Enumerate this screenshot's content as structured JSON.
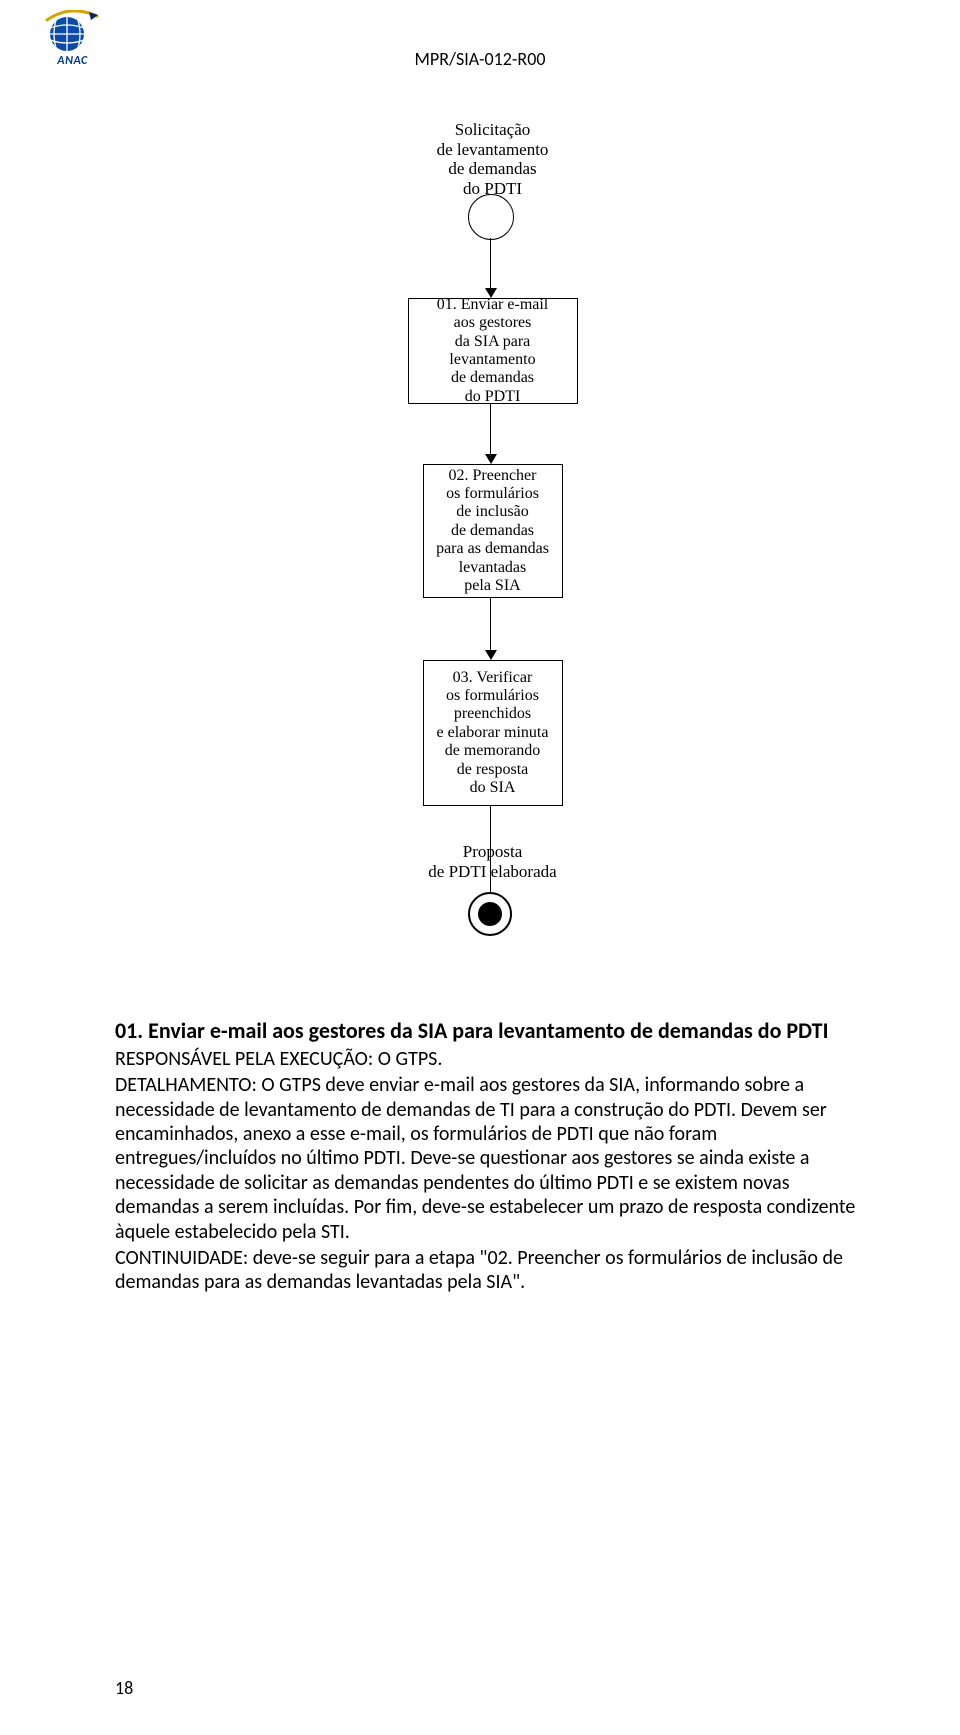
{
  "doc": {
    "header_code": "MPR/SIA-012-R00",
    "logo_text": "ANAC",
    "logo_colors": {
      "blue": "#003b8e",
      "gold": "#d6a400"
    },
    "page_number": "18"
  },
  "flowchart": {
    "type": "flowchart",
    "font_family": "Times New Roman",
    "node_fontsize": 16,
    "label_fontsize": 17,
    "border_color": "#000000",
    "background_color": "#ffffff",
    "line_width": 1.5,
    "start_label": "Solicitação\nde levantamento\nde demandas\ndo PDTI",
    "nodes": [
      {
        "id": "n1",
        "text": "01. Enviar e-mail\naos gestores\nda SIA para levantamento\nde demandas\ndo PDTI"
      },
      {
        "id": "n2",
        "text": "02. Preencher\nos formulários\nde inclusão\nde demandas\npara as demandas\nlevantadas\npela SIA"
      },
      {
        "id": "n3",
        "text": "03. Verificar\nos formulários\npreenchidos\ne elaborar minuta\nde memorando\nde resposta\ndo SIA"
      }
    ],
    "end_label": "Proposta\nde PDTI elaborada",
    "edges": [
      {
        "from": "start",
        "to": "n1"
      },
      {
        "from": "n1",
        "to": "n2"
      },
      {
        "from": "n2",
        "to": "n3"
      },
      {
        "from": "n3",
        "to": "end"
      }
    ]
  },
  "section": {
    "heading": "01. Enviar e-mail aos gestores da SIA para levantamento de demandas do PDTI",
    "responsavel": "RESPONSÁVEL PELA EXECUÇÃO: O GTPS.",
    "detalhamento": "DETALHAMENTO: O GTPS deve enviar e-mail aos gestores da SIA, informando sobre a necessidade de levantamento de demandas de TI para a construção do PDTI. Devem ser encaminhados, anexo a esse e-mail, os formulários de PDTI que não foram entregues/incluídos no último PDTI. Deve-se questionar aos gestores se ainda existe a necessidade de solicitar as demandas pendentes do último PDTI e se existem novas demandas a serem incluídas. Por fim, deve-se estabelecer um prazo de resposta condizente àquele estabelecido pela STI.",
    "continuidade": "CONTINUIDADE: deve-se seguir para a etapa \"02. Preencher os formulários de inclusão de demandas para as demandas levantadas pela SIA\"."
  }
}
